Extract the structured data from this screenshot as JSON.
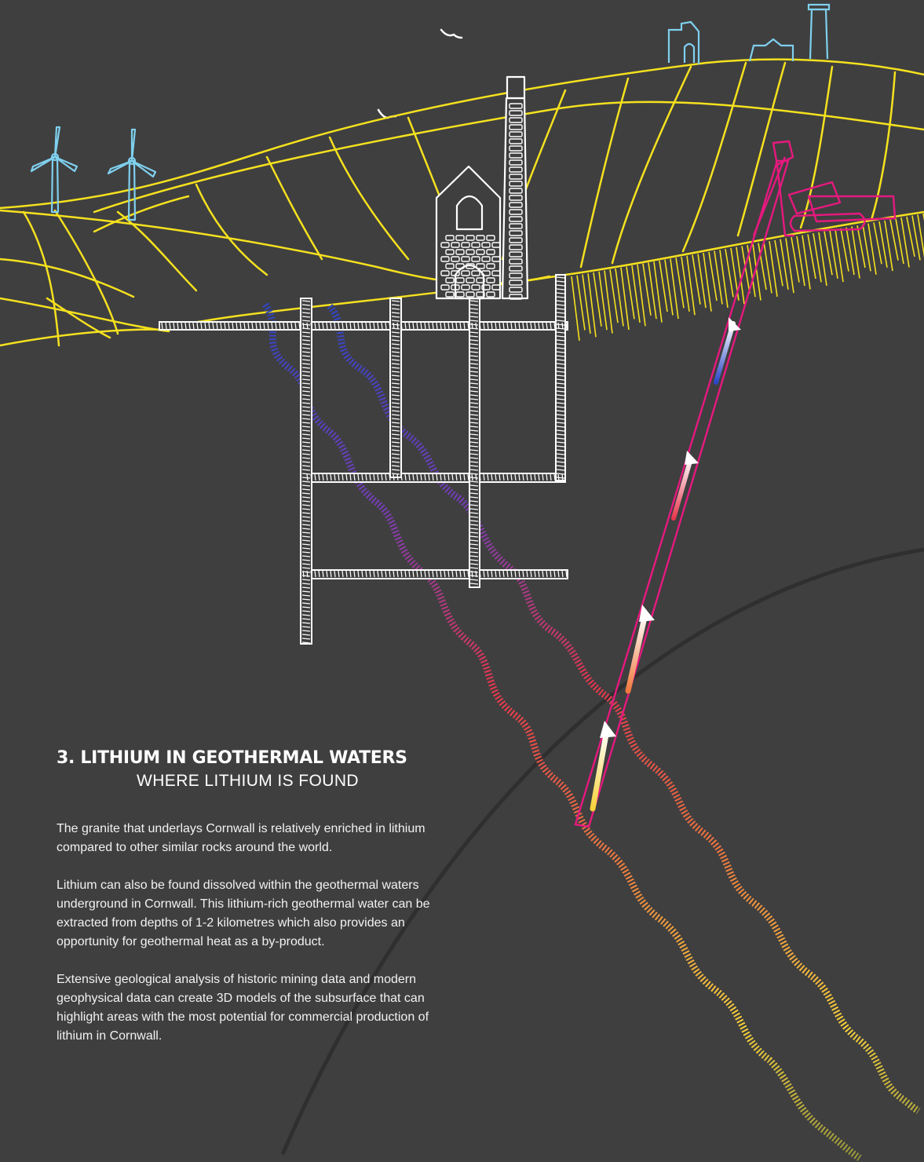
{
  "section": {
    "heading": "3. LITHIUM IN GEOTHERMAL WATERS",
    "subheading": "WHERE LITHIUM IS FOUND"
  },
  "paragraphs": {
    "p1": "The granite that underlays Cornwall is relatively enriched in lithium compared to other similar rocks around the world.",
    "p2": "Lithium can also be found dissolved within the geothermal waters underground in Cornwall. This lithium-rich geothermal water can be extracted from depths of 1-2 kilometres which also  provides an opportunity for geothermal heat as a by-product.",
    "p3": "Extensive geological analysis of historic mining data and modern geophysical data can create 3D models of the subsurface that can highlight areas with the most potential for commercial production of lithium in Cornwall."
  },
  "colors": {
    "background": "#3f3f40",
    "hills": "#f5e11e",
    "mine": "#ffffff",
    "turbines": "#7fd0ee",
    "rig": "#e6197e",
    "water_cold": "#2b47c8",
    "water_hot": "#e8364e",
    "water_warm": "#f7d23a"
  },
  "icons": {
    "turbines": "wind-turbine-icon",
    "engine_house": "engine-house-icon",
    "drill_rig": "drill-rig-icon",
    "birds": "bird-icon"
  }
}
